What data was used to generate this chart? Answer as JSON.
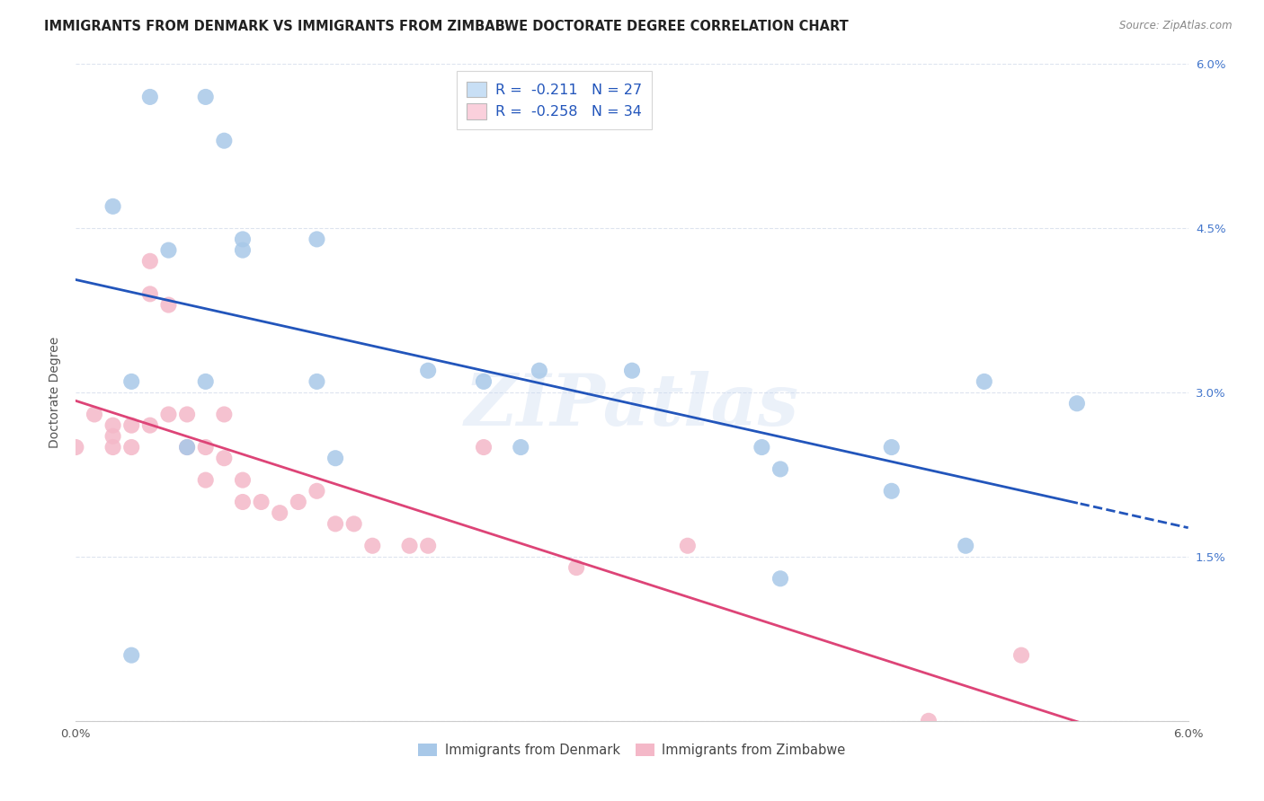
{
  "title": "IMMIGRANTS FROM DENMARK VS IMMIGRANTS FROM ZIMBABWE DOCTORATE DEGREE CORRELATION CHART",
  "source": "Source: ZipAtlas.com",
  "ylabel": "Doctorate Degree",
  "xlim": [
    0.0,
    0.06
  ],
  "ylim": [
    0.0,
    0.06
  ],
  "denmark_R": -0.211,
  "denmark_N": 27,
  "zimbabwe_R": -0.258,
  "zimbabwe_N": 34,
  "denmark_color": "#a8c8e8",
  "zimbabwe_color": "#f4b8c8",
  "denmark_line_color": "#2255bb",
  "zimbabwe_line_color": "#dd4477",
  "legend_box_color_denmark": "#c8dff5",
  "legend_box_color_zimbabwe": "#fad0dc",
  "denmark_x": [
    0.004,
    0.007,
    0.008,
    0.002,
    0.009,
    0.013,
    0.005,
    0.009,
    0.013,
    0.019,
    0.025,
    0.003,
    0.007,
    0.022,
    0.03,
    0.037,
    0.044,
    0.049,
    0.054,
    0.006,
    0.014,
    0.024,
    0.038,
    0.044,
    0.048,
    0.038,
    0.003
  ],
  "denmark_y": [
    0.057,
    0.057,
    0.053,
    0.047,
    0.044,
    0.044,
    0.043,
    0.043,
    0.031,
    0.032,
    0.032,
    0.031,
    0.031,
    0.031,
    0.032,
    0.025,
    0.025,
    0.031,
    0.029,
    0.025,
    0.024,
    0.025,
    0.023,
    0.021,
    0.016,
    0.013,
    0.006
  ],
  "zimbabwe_x": [
    0.0,
    0.001,
    0.002,
    0.002,
    0.002,
    0.003,
    0.003,
    0.004,
    0.004,
    0.004,
    0.005,
    0.005,
    0.006,
    0.006,
    0.007,
    0.007,
    0.008,
    0.008,
    0.009,
    0.009,
    0.01,
    0.011,
    0.012,
    0.013,
    0.014,
    0.015,
    0.016,
    0.018,
    0.019,
    0.022,
    0.027,
    0.033,
    0.046,
    0.051
  ],
  "zimbabwe_y": [
    0.025,
    0.028,
    0.027,
    0.026,
    0.025,
    0.027,
    0.025,
    0.042,
    0.039,
    0.027,
    0.038,
    0.028,
    0.028,
    0.025,
    0.025,
    0.022,
    0.028,
    0.024,
    0.022,
    0.02,
    0.02,
    0.019,
    0.02,
    0.021,
    0.018,
    0.018,
    0.016,
    0.016,
    0.016,
    0.025,
    0.014,
    0.016,
    0.0,
    0.006
  ],
  "background_color": "#ffffff",
  "grid_color": "#dde4ef",
  "title_fontsize": 10.5,
  "axis_fontsize": 10,
  "tick_fontsize": 9.5,
  "watermark": "ZIPatlas"
}
